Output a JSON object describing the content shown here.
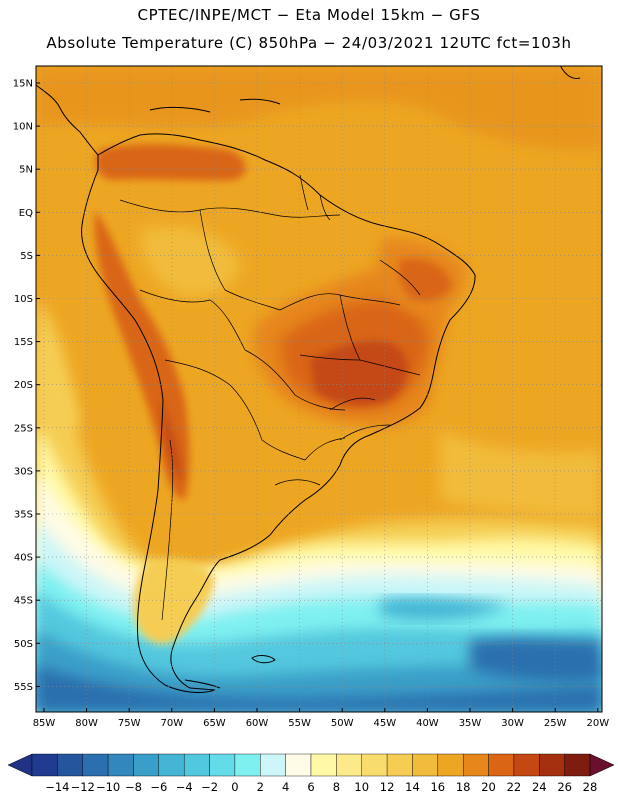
{
  "header": {
    "line1": "CPTEC/INPE/MCT −  Eta Model 15km − GFS",
    "line2": "Absolute Temperature (C) 850hPa − 24/03/2021 12UTC fct=103h"
  },
  "axes": {
    "lat_labels": [
      "15N",
      "10N",
      "5N",
      "EQ",
      "5S",
      "10S",
      "15S",
      "20S",
      "25S",
      "30S",
      "35S",
      "40S",
      "45S",
      "50S",
      "55S"
    ],
    "lon_labels": [
      "85W",
      "80W",
      "75W",
      "70W",
      "65W",
      "60W",
      "55W",
      "50W",
      "45W",
      "40W",
      "35W",
      "30W",
      "25W",
      "20W"
    ]
  },
  "colorbar": {
    "labels": [
      "−14",
      "−12",
      "−10",
      "−8",
      "−6",
      "−4",
      "−2",
      "0",
      "2",
      "4",
      "6",
      "8",
      "10",
      "12",
      "14",
      "16",
      "18",
      "20",
      "22",
      "24",
      "26",
      "28"
    ],
    "colors": [
      "#1f3a8f",
      "#24559d",
      "#2b6fae",
      "#3287bc",
      "#3a9fc8",
      "#44b5d4",
      "#52c8de",
      "#63dbe8",
      "#7ff0f0",
      "#ccf6f8",
      "#fffbe6",
      "#fff9a6",
      "#fbe98a",
      "#f9dc6e",
      "#f5cd52",
      "#f1bc3b",
      "#eda622",
      "#e6861b",
      "#d96515",
      "#c44812",
      "#a53010",
      "#7e1c10"
    ],
    "under_color": "#203284",
    "over_color": "#6b0f2e"
  }
}
